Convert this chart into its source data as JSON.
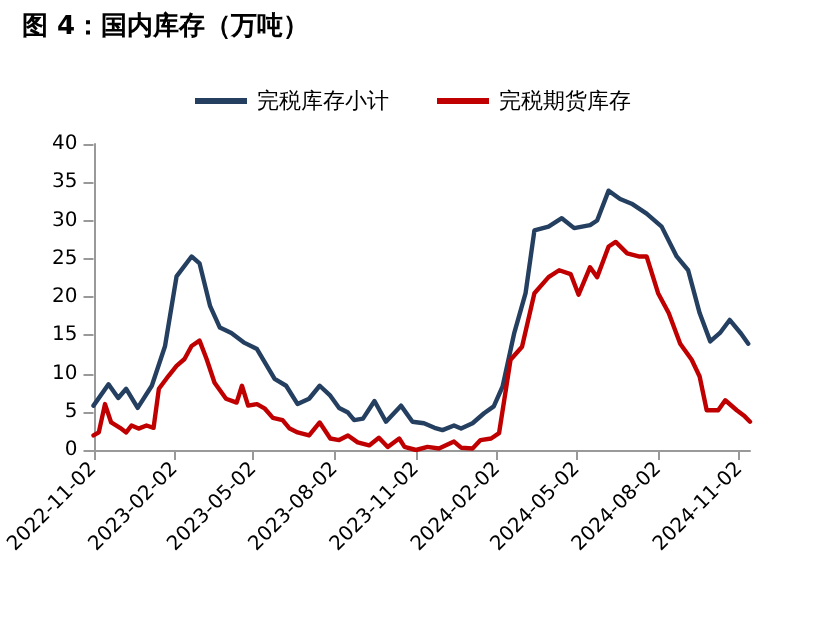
{
  "chart_data": {
    "type": "line",
    "title": "图 4：国内库存（万吨）",
    "series": [
      {
        "name": "完税库存小计",
        "color": "#243f60",
        "x": [
          "2022-11-02",
          "2022-11-19",
          "2022-11-30",
          "2022-12-09",
          "2022-12-22",
          "2023-01-07",
          "2023-01-22",
          "2023-02-04",
          "2023-02-21",
          "2023-03-02",
          "2023-03-14",
          "2023-03-25",
          "2023-04-07",
          "2023-04-22",
          "2023-05-06",
          "2023-05-26",
          "2023-06-08",
          "2023-06-21",
          "2023-07-04",
          "2023-07-16",
          "2023-07-28",
          "2023-08-07",
          "2023-08-17",
          "2023-08-24",
          "2023-09-03",
          "2023-09-16",
          "2023-09-29",
          "2023-10-16",
          "2023-10-29",
          "2023-11-11",
          "2023-11-23",
          "2023-12-02",
          "2023-12-15",
          "2023-12-23",
          "2024-01-05",
          "2024-01-18",
          "2024-01-29",
          "2024-02-08",
          "2024-02-21",
          "2024-03-05",
          "2024-03-15",
          "2024-03-31",
          "2024-04-15",
          "2024-04-29",
          "2024-05-17",
          "2024-05-25",
          "2024-06-07",
          "2024-06-20",
          "2024-07-03",
          "2024-07-20",
          "2024-08-06",
          "2024-08-23",
          "2024-09-05",
          "2024-09-18",
          "2024-09-30",
          "2024-10-11",
          "2024-10-22",
          "2024-11-04",
          "2024-11-12"
        ],
        "values": [
          5.8,
          8.6,
          6.8,
          8,
          5.5,
          8.4,
          13.6,
          22.7,
          25.3,
          24.4,
          18.8,
          16,
          15.3,
          14,
          13.2,
          9.3,
          8.4,
          6,
          6.7,
          8.4,
          7.1,
          5.5,
          4.9,
          3.9,
          4.1,
          6.4,
          3.7,
          5.8,
          3.7,
          3.5,
          2.9,
          2.6,
          3.2,
          2.8,
          3.5,
          4.8,
          5.7,
          8.3,
          15.2,
          20.5,
          28.7,
          29.2,
          30.3,
          29,
          29.4,
          30,
          33.9,
          32.8,
          32.2,
          30.9,
          29.2,
          25.3,
          23.5,
          17.9,
          14.2,
          15.3,
          17,
          15.2,
          13.9
        ]
      },
      {
        "name": "完税期货库存",
        "color": "#c00000",
        "x": [
          "2022-11-02",
          "2022-11-08",
          "2022-11-15",
          "2022-11-22",
          "2022-12-02",
          "2022-12-09",
          "2022-12-15",
          "2022-12-23",
          "2023-01-01",
          "2023-01-09",
          "2023-01-15",
          "2023-01-26",
          "2023-02-04",
          "2023-02-13",
          "2023-02-21",
          "2023-03-02",
          "2023-03-10",
          "2023-03-19",
          "2023-04-01",
          "2023-04-13",
          "2023-04-19",
          "2023-04-26",
          "2023-05-06",
          "2023-05-15",
          "2023-05-24",
          "2023-06-04",
          "2023-06-12",
          "2023-06-21",
          "2023-07-04",
          "2023-07-16",
          "2023-07-28",
          "2023-08-07",
          "2023-08-17",
          "2023-08-28",
          "2023-09-10",
          "2023-09-21",
          "2023-10-01",
          "2023-10-14",
          "2023-10-20",
          "2023-11-02",
          "2023-11-15",
          "2023-11-28",
          "2023-12-15",
          "2023-12-23",
          "2024-01-05",
          "2024-01-14",
          "2024-01-26",
          "2024-02-04",
          "2024-02-17",
          "2024-03-01",
          "2024-03-15",
          "2024-03-31",
          "2024-04-12",
          "2024-04-25",
          "2024-05-04",
          "2024-05-17",
          "2024-05-25",
          "2024-06-07",
          "2024-06-15",
          "2024-06-28",
          "2024-07-11",
          "2024-07-20",
          "2024-08-02",
          "2024-08-14",
          "2024-08-27",
          "2024-09-09",
          "2024-09-18",
          "2024-09-26",
          "2024-10-09",
          "2024-10-17",
          "2024-10-30",
          "2024-11-08",
          "2024-11-14"
        ],
        "values": [
          1.9,
          2.3,
          6,
          3.6,
          2.9,
          2.3,
          3.2,
          2.8,
          3.2,
          2.9,
          8,
          9.7,
          11,
          11.9,
          13.6,
          14.3,
          11.9,
          8.8,
          6.7,
          6.2,
          8.4,
          5.8,
          6,
          5.4,
          4.2,
          3.9,
          2.8,
          2.3,
          1.9,
          3.6,
          1.5,
          1.3,
          1.9,
          1,
          0.6,
          1.6,
          0.4,
          1.5,
          0.4,
          0,
          0.4,
          0.2,
          1.1,
          0.3,
          0.2,
          1.3,
          1.5,
          2.2,
          11.8,
          13.5,
          20.5,
          22.6,
          23.5,
          23,
          20.3,
          23.9,
          22.6,
          26.6,
          27.2,
          25.7,
          25.3,
          25.3,
          20.5,
          17.9,
          13.9,
          11.8,
          9.6,
          5.2,
          5.2,
          6.5,
          5.2,
          4.4,
          3.7
        ]
      }
    ],
    "xlim": [
      "2022-11-02",
      "2024-11-14"
    ],
    "xticks": [
      "2022-11-02",
      "2023-02-02",
      "2023-05-02",
      "2023-08-02",
      "2023-11-02",
      "2024-02-02",
      "2024-05-02",
      "2024-08-02",
      "2024-11-02"
    ],
    "ylim": [
      0,
      40
    ],
    "yticks": [
      0,
      5,
      10,
      15,
      20,
      25,
      30,
      35,
      40
    ],
    "grid": false,
    "legend": "top",
    "marker": "none",
    "line_style": "solid"
  }
}
